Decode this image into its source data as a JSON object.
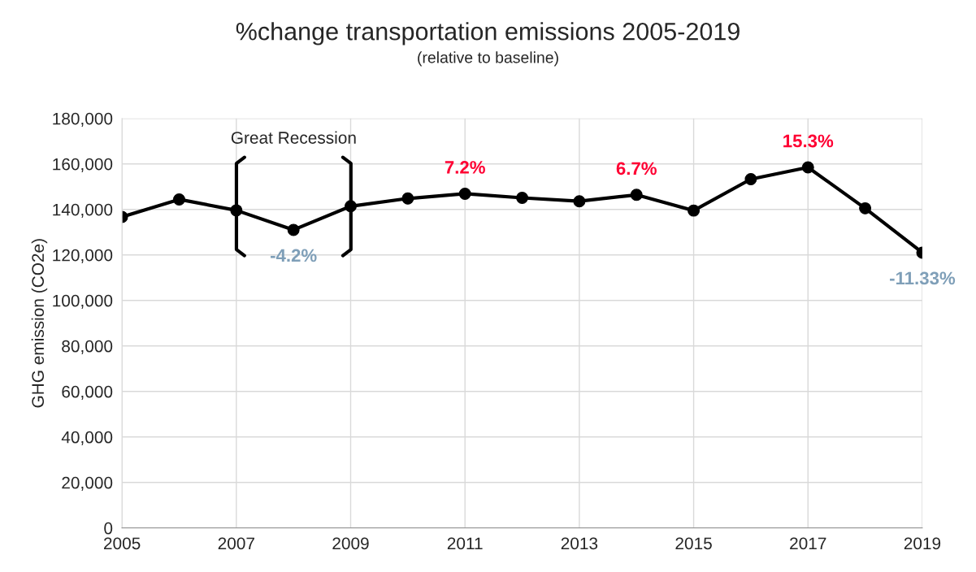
{
  "chart_data": {
    "type": "line",
    "title": "%change transportation emissions 2005-2019",
    "subtitle": "(relative to baseline)",
    "ylabel": "GHG emission (CO2e)",
    "x": [
      2005,
      2006,
      2007,
      2008,
      2009,
      2010,
      2011,
      2012,
      2013,
      2014,
      2015,
      2016,
      2017,
      2018,
      2019
    ],
    "series": [
      {
        "color": "#000000",
        "values": [
          136700,
          144400,
          139600,
          131000,
          141400,
          144800,
          146900,
          145100,
          143600,
          146400,
          139500,
          153300,
          158500,
          140500,
          121000
        ]
      }
    ],
    "xlim": [
      2005,
      2019
    ],
    "xticks": [
      2005,
      2007,
      2009,
      2011,
      2013,
      2015,
      2017,
      2019
    ],
    "ylim": [
      0,
      180000
    ],
    "yticks": [
      {
        "value": 0,
        "label": "0"
      },
      {
        "value": 20000,
        "label": "20,000"
      },
      {
        "value": 40000,
        "label": "40,000"
      },
      {
        "value": 60000,
        "label": "60,000"
      },
      {
        "value": 80000,
        "label": "80,000"
      },
      {
        "value": 100000,
        "label": "100,000"
      },
      {
        "value": 120000,
        "label": "120,000"
      },
      {
        "value": 140000,
        "label": "140,000"
      },
      {
        "value": 160000,
        "label": "160,000"
      },
      {
        "value": 180000,
        "label": "180,000"
      }
    ],
    "annotations": [
      "Great Recession",
      {
        "text": "-4.2%",
        "x": 2008,
        "y": 131000
      },
      {
        "text": "7.2%",
        "x": 2011,
        "y": 146900
      },
      {
        "text": "6.7%",
        "x": 2014,
        "y": 146400
      },
      {
        "text": "15.3%",
        "x": 2017,
        "y": 158500
      },
      {
        "text": "-11.33%",
        "x": 2019,
        "y": 121000
      }
    ],
    "grid": true,
    "marker": "circle",
    "line_style": "solid"
  }
}
